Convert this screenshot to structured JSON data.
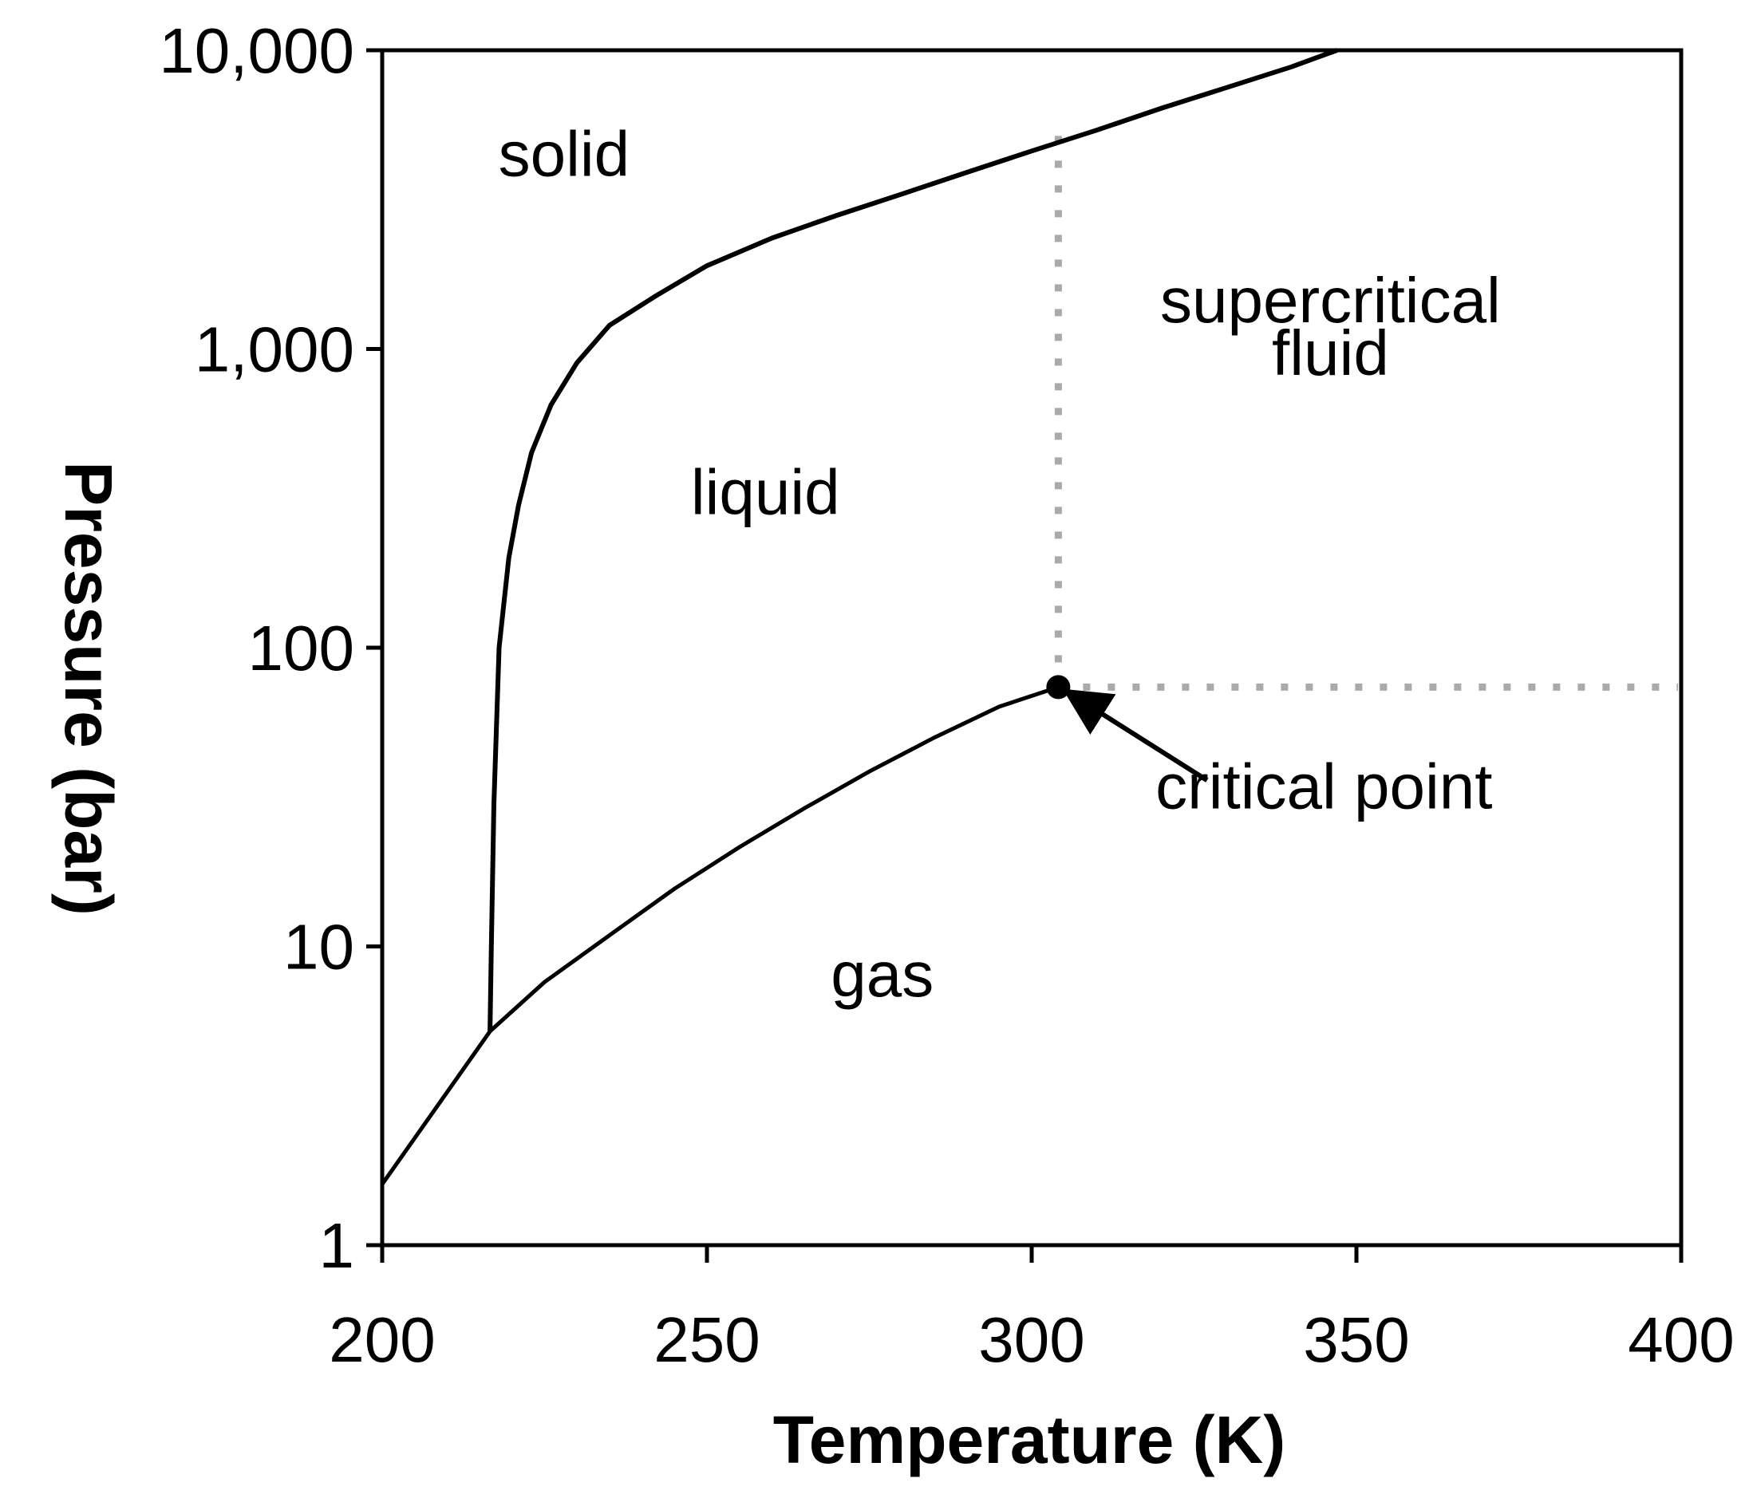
{
  "chart_data": {
    "type": "line",
    "title": "",
    "xlabel": "Temperature (K)",
    "ylabel": "Pressure (bar)",
    "xlim": [
      200,
      400
    ],
    "ylim": [
      1,
      10000
    ],
    "y_scale": "log",
    "grid": false,
    "x_ticks": [
      200,
      250,
      300,
      350,
      400
    ],
    "x_tick_labels": [
      "200",
      "250",
      "300",
      "350",
      "400"
    ],
    "y_ticks": [
      1,
      10,
      100,
      1000,
      10000
    ],
    "y_tick_labels": [
      "1",
      "10",
      "100",
      "1,000",
      "10,000"
    ],
    "series": [
      {
        "x": [
          200,
          216.6
        ],
        "y": [
          1.6,
          5.2
        ]
      },
      {
        "x": [
          216.6,
          216.8,
          217.2,
          218,
          219.5,
          221,
          223,
          226,
          230,
          235,
          242,
          250,
          260,
          270,
          280,
          290,
          300,
          310,
          320,
          330,
          340,
          347
        ],
        "y": [
          5.2,
          10,
          30,
          100,
          200,
          300,
          450,
          650,
          900,
          1200,
          1500,
          1900,
          2350,
          2800,
          3300,
          3900,
          4600,
          5400,
          6400,
          7500,
          8800,
          10000
        ]
      },
      {
        "x": [
          216.6,
          225,
          235,
          245,
          255,
          265,
          275,
          285,
          295,
          304.1
        ],
        "y": [
          5.2,
          7.6,
          10.9,
          15.6,
          21.5,
          29.0,
          38.5,
          50.0,
          63.5,
          73.8
        ]
      }
    ],
    "critical_point": {
      "x": 304.1,
      "y": 73.8
    },
    "boundaries": {
      "temperature": 304.1,
      "pressure": 73.8
    },
    "regions": [
      {
        "label": "solid",
        "x": 228,
        "y": 3800
      },
      {
        "label": "liquid",
        "x": 259,
        "y": 280
      },
      {
        "label": "supercritical",
        "x": 346,
        "y": 1230
      },
      {
        "label": "fluid",
        "x": 346,
        "y": 820
      },
      {
        "label": "gas",
        "x": 277,
        "y": 6.8
      }
    ],
    "annotations": [
      {
        "text": "critical point",
        "x": 345,
        "y": 29,
        "arrow_from": {
          "x": 327,
          "y": 36
        },
        "arrow_to": {
          "x": 306,
          "y": 70
        }
      }
    ]
  }
}
